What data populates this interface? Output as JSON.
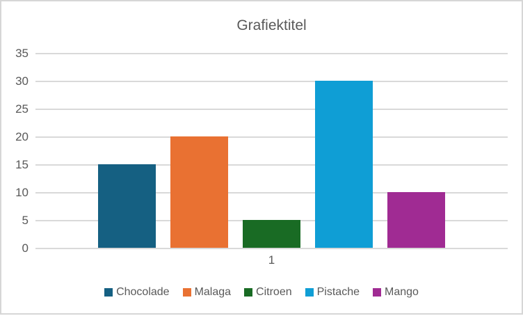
{
  "chart_data": {
    "type": "bar",
    "title": "Grafiektitel",
    "categories": [
      "1"
    ],
    "series": [
      {
        "name": "Chocolade",
        "values": [
          15
        ],
        "color": "#156082"
      },
      {
        "name": "Malaga",
        "values": [
          20
        ],
        "color": "#E97132"
      },
      {
        "name": "Citroen",
        "values": [
          5
        ],
        "color": "#196B24"
      },
      {
        "name": "Pistache",
        "values": [
          30
        ],
        "color": "#0F9ED5"
      },
      {
        "name": "Mango",
        "values": [
          10
        ],
        "color": "#A02B93"
      }
    ],
    "ylim": [
      0,
      35
    ],
    "yticks": [
      0,
      5,
      10,
      15,
      20,
      25,
      30,
      35
    ],
    "grid": true,
    "legend_position": "bottom",
    "xlabel": "",
    "ylabel": ""
  },
  "style": {
    "background": "#FFFFFF",
    "border_color": "#D6D6D6",
    "gridline_color": "#D9D9D9",
    "text_color": "#595959"
  }
}
